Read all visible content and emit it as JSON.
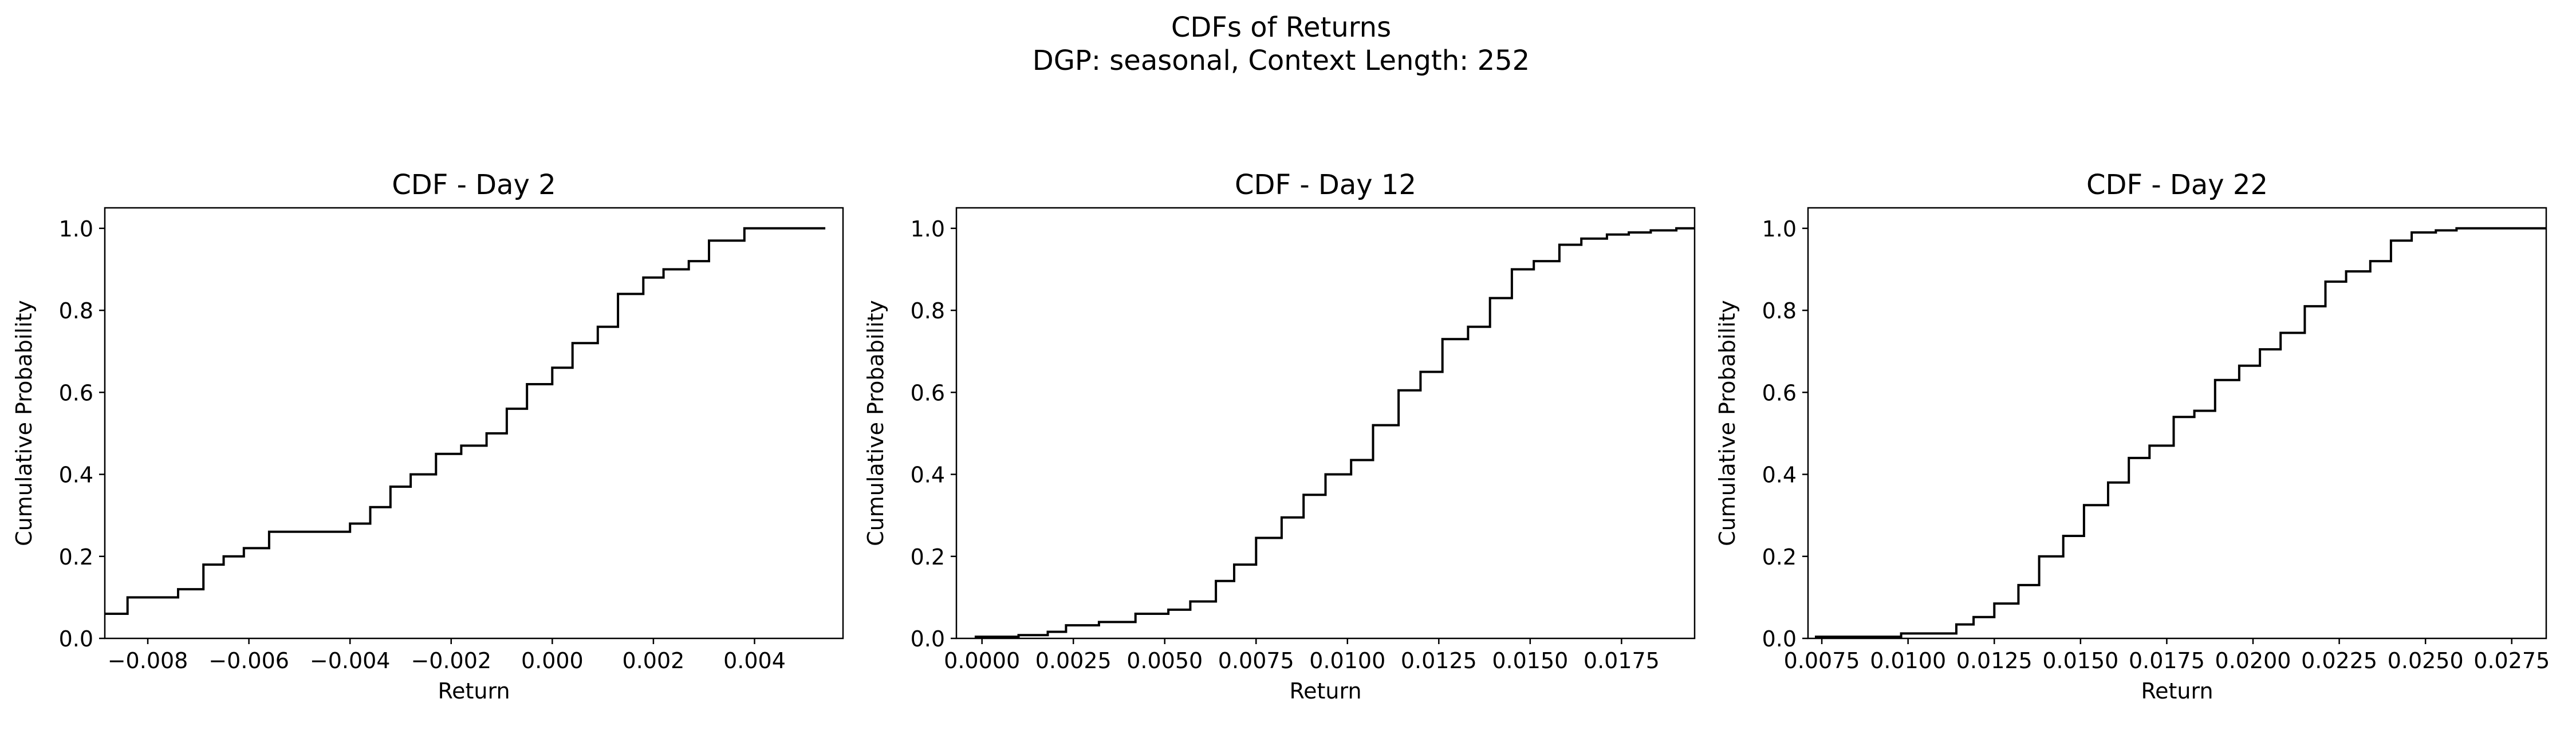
{
  "figure": {
    "title_line1": "CDFs of Returns",
    "title_line2": "DGP: seasonal, Context Length: 252"
  },
  "chart_data": [
    {
      "type": "line",
      "step": true,
      "title": "CDF - Day 2",
      "xlabel": "Return",
      "ylabel": "Cumulative Probability",
      "xlim": [
        -0.00885,
        0.00575
      ],
      "ylim": [
        0,
        1.05
      ],
      "xticks": [
        -0.008,
        -0.006,
        -0.004,
        -0.002,
        0.0,
        0.002,
        0.004
      ],
      "xtick_labels": [
        "−0.008",
        "−0.006",
        "−0.004",
        "−0.002",
        "0.000",
        "0.002",
        "0.004"
      ],
      "yticks": [
        0.0,
        0.2,
        0.4,
        0.6,
        0.8,
        1.0
      ],
      "ytick_labels": [
        "0.0",
        "0.2",
        "0.4",
        "0.6",
        "0.8",
        "1.0"
      ],
      "grid": false,
      "series": [
        {
          "x": [
            -0.0094,
            -0.0084,
            -0.0074,
            -0.0069,
            -0.0065,
            -0.0061,
            -0.0056,
            -0.004,
            -0.0036,
            -0.0032,
            -0.0028,
            -0.0023,
            -0.0018,
            -0.0013,
            -0.0009,
            -0.0005,
            0.0,
            0.0004,
            0.0009,
            0.0013,
            0.0018,
            0.0022,
            0.0027,
            0.0031,
            0.0038,
            0.0054
          ],
          "y": [
            0.06,
            0.1,
            0.12,
            0.18,
            0.2,
            0.22,
            0.26,
            0.28,
            0.32,
            0.37,
            0.4,
            0.45,
            0.47,
            0.5,
            0.56,
            0.62,
            0.66,
            0.72,
            0.76,
            0.84,
            0.88,
            0.9,
            0.92,
            0.97,
            1.0,
            1.0
          ],
          "color": "#000000"
        }
      ]
    },
    {
      "type": "line",
      "step": true,
      "title": "CDF - Day 12",
      "xlabel": "Return",
      "ylabel": "Cumulative Probability",
      "xlim": [
        -0.0007,
        0.0195
      ],
      "ylim": [
        0,
        1.05
      ],
      "xticks": [
        0.0,
        0.0025,
        0.005,
        0.0075,
        0.01,
        0.0125,
        0.015,
        0.0175
      ],
      "xtick_labels": [
        "0.0000",
        "0.0025",
        "0.0050",
        "0.0075",
        "0.0100",
        "0.0125",
        "0.0150",
        "0.0175"
      ],
      "yticks": [
        0.0,
        0.2,
        0.4,
        0.6,
        0.8,
        1.0
      ],
      "ytick_labels": [
        "0.0",
        "0.2",
        "0.4",
        "0.6",
        "0.8",
        "1.0"
      ],
      "grid": false,
      "series": [
        {
          "x": [
            -0.0002,
            0.001,
            0.0018,
            0.0023,
            0.0032,
            0.0042,
            0.0051,
            0.0057,
            0.0064,
            0.0069,
            0.0075,
            0.0082,
            0.0088,
            0.0094,
            0.0101,
            0.0107,
            0.0114,
            0.012,
            0.0126,
            0.0133,
            0.0139,
            0.0145,
            0.0151,
            0.0158,
            0.0164,
            0.0171,
            0.0177,
            0.0183,
            0.019,
            0.0196
          ],
          "y": [
            0.004,
            0.008,
            0.016,
            0.032,
            0.04,
            0.06,
            0.07,
            0.09,
            0.14,
            0.18,
            0.245,
            0.295,
            0.35,
            0.4,
            0.435,
            0.52,
            0.605,
            0.65,
            0.73,
            0.76,
            0.83,
            0.9,
            0.92,
            0.96,
            0.975,
            0.985,
            0.99,
            0.995,
            1.0,
            1.0
          ],
          "color": "#000000"
        }
      ]
    },
    {
      "type": "line",
      "step": true,
      "title": "CDF - Day 22",
      "xlabel": "Return",
      "ylabel": "Cumulative Probability",
      "xlim": [
        0.0071,
        0.0285
      ],
      "ylim": [
        0,
        1.05
      ],
      "xticks": [
        0.0075,
        0.01,
        0.0125,
        0.015,
        0.0175,
        0.02,
        0.0225,
        0.025,
        0.0275
      ],
      "xtick_labels": [
        "0.0075",
        "0.0100",
        "0.0125",
        "0.0150",
        "0.0175",
        "0.0200",
        "0.0225",
        "0.0250",
        "0.0275"
      ],
      "yticks": [
        0.0,
        0.2,
        0.4,
        0.6,
        0.8,
        1.0
      ],
      "ytick_labels": [
        "0.0",
        "0.2",
        "0.4",
        "0.6",
        "0.8",
        "1.0"
      ],
      "grid": false,
      "series": [
        {
          "x": [
            0.0073,
            0.0098,
            0.0114,
            0.0119,
            0.0125,
            0.0132,
            0.0138,
            0.0145,
            0.0151,
            0.0158,
            0.0164,
            0.017,
            0.0177,
            0.0183,
            0.0189,
            0.0196,
            0.0202,
            0.0208,
            0.0215,
            0.0221,
            0.0227,
            0.0234,
            0.024,
            0.0246,
            0.0253,
            0.0259,
            0.0265,
            0.0272,
            0.0278,
            0.029
          ],
          "y": [
            0.004,
            0.012,
            0.034,
            0.052,
            0.085,
            0.13,
            0.2,
            0.25,
            0.325,
            0.38,
            0.44,
            0.47,
            0.54,
            0.555,
            0.63,
            0.665,
            0.705,
            0.745,
            0.81,
            0.87,
            0.895,
            0.92,
            0.97,
            0.99,
            0.995,
            1.0,
            1.0,
            1.0,
            1.0,
            1.0
          ],
          "color": "#000000"
        }
      ]
    }
  ]
}
